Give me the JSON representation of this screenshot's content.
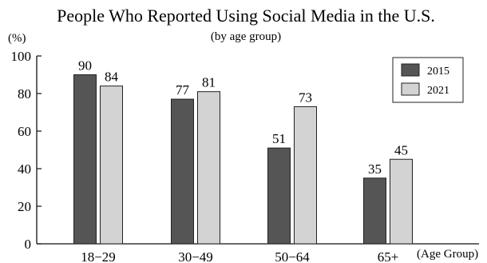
{
  "chart_data": {
    "type": "bar",
    "title": "People Who Reported Using Social Media in the U.S.",
    "subtitle": "(by age group)",
    "ylabel": "(%)",
    "xlabel": "(Age Group)",
    "categories": [
      "18−29",
      "30−49",
      "50−64",
      "65+"
    ],
    "series": [
      {
        "name": "2015",
        "values": [
          90,
          77,
          51,
          35
        ],
        "color": "#555555"
      },
      {
        "name": "2021",
        "values": [
          84,
          81,
          73,
          45
        ],
        "color": "#d3d3d3"
      }
    ],
    "ylim": [
      0,
      100
    ],
    "yticks": [
      0,
      20,
      40,
      60,
      80,
      100
    ],
    "grid": false,
    "legend_position": "top-right"
  }
}
